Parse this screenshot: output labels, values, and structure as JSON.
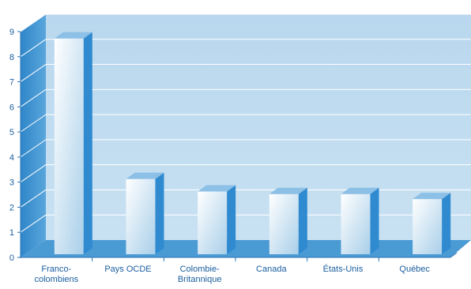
{
  "chart_data": {
    "type": "bar",
    "categories": [
      [
        "Franco-",
        "colombiens"
      ],
      [
        "Pays OCDE"
      ],
      [
        "Colombie-",
        "Britannique"
      ],
      [
        "Canada"
      ],
      [
        "États-Unis"
      ],
      [
        "Québec"
      ]
    ],
    "values": [
      8.6,
      3.0,
      2.5,
      2.4,
      2.4,
      2.2
    ],
    "ylim": [
      0,
      9
    ],
    "yticks": [
      "0",
      "1",
      "2",
      "3",
      "4",
      "5",
      "6",
      "7",
      "8",
      "9"
    ],
    "grid": true
  },
  "colors": {
    "back_wall": "#c2ddf0",
    "side_wall": "#3d94d1",
    "floor": "#4a9ad4",
    "gridline": "#ffffff",
    "axis": "#2a73b5",
    "bar_front_light": "#ffffff",
    "bar_front_dark": "#a9cfe9",
    "bar_side": "#2f8ad0",
    "bar_top": "#8cc0e6",
    "text": "#1a5e9e"
  }
}
